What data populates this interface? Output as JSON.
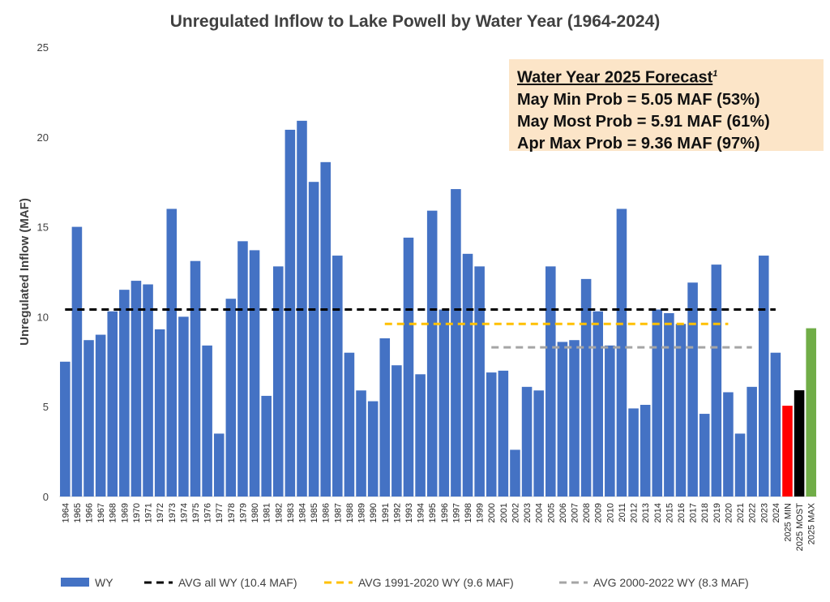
{
  "chart_data": {
    "type": "bar",
    "title": "Unregulated Inflow to Lake Powell by Water Year (1964-2024)",
    "ylabel": "Unregulated Inflow (MAF)",
    "ylim": [
      0,
      25
    ],
    "yticks": [
      0,
      5,
      10,
      15,
      20,
      25
    ],
    "grid": false,
    "legend_position": "bottom",
    "categories": [
      "1964",
      "1965",
      "1966",
      "1967",
      "1968",
      "1969",
      "1970",
      "1971",
      "1972",
      "1973",
      "1974",
      "1975",
      "1976",
      "1977",
      "1978",
      "1979",
      "1980",
      "1981",
      "1982",
      "1983",
      "1984",
      "1985",
      "1986",
      "1987",
      "1988",
      "1989",
      "1990",
      "1991",
      "1992",
      "1993",
      "1994",
      "1995",
      "1996",
      "1997",
      "1998",
      "1999",
      "2000",
      "2001",
      "2002",
      "2003",
      "2004",
      "2005",
      "2006",
      "2007",
      "2008",
      "2009",
      "2010",
      "2011",
      "2012",
      "2013",
      "2014",
      "2015",
      "2016",
      "2017",
      "2018",
      "2019",
      "2020",
      "2021",
      "2022",
      "2023",
      "2024",
      "2025 MIN",
      "2025 MOST",
      "2025 MAX"
    ],
    "series": [
      {
        "name": "WY",
        "color": "#4472c4",
        "values": [
          7.5,
          15.0,
          8.7,
          9.0,
          10.3,
          11.5,
          12.0,
          11.8,
          9.3,
          16.0,
          10.0,
          13.1,
          8.4,
          3.5,
          11.0,
          14.2,
          13.7,
          5.6,
          12.8,
          20.4,
          20.9,
          17.5,
          18.6,
          13.4,
          8.0,
          5.9,
          5.3,
          8.8,
          7.3,
          14.4,
          6.8,
          15.9,
          10.4,
          17.1,
          13.5,
          12.8,
          6.9,
          7.0,
          2.6,
          6.1,
          5.9,
          12.8,
          8.6,
          8.7,
          12.1,
          10.3,
          8.4,
          16.0,
          4.9,
          5.1,
          10.4,
          10.2,
          9.6,
          11.9,
          4.6,
          12.9,
          5.8,
          3.5,
          6.1,
          13.4,
          8.0,
          null,
          null,
          null
        ]
      }
    ],
    "forecast_bars": [
      {
        "category": "2025 MIN",
        "value": 5.05,
        "color": "#ff0000"
      },
      {
        "category": "2025 MOST",
        "value": 5.91,
        "color": "#000000"
      },
      {
        "category": "2025 MAX",
        "value": 9.36,
        "color": "#70ad47"
      }
    ],
    "reference_lines": [
      {
        "name": "AVG all WY (10.4 MAF)",
        "value": 10.4,
        "from": "1964",
        "to": "2024",
        "color": "#000000"
      },
      {
        "name": "AVG 1991-2020 WY (9.6 MAF)",
        "value": 9.6,
        "from": "1991",
        "to": "2020",
        "color": "#ffc000"
      },
      {
        "name": "AVG 2000-2022 WY (8.3 MAF)",
        "value": 8.3,
        "from": "2000",
        "to": "2022",
        "color": "#a5a5a5"
      }
    ],
    "legend": [
      {
        "label": "WY",
        "kind": "bar",
        "color": "#4472c4"
      },
      {
        "label": "AVG all WY (10.4 MAF)",
        "kind": "dash",
        "color": "#000000"
      },
      {
        "label": "AVG 1991-2020 WY (9.6 MAF)",
        "kind": "dash",
        "color": "#ffc000"
      },
      {
        "label": "AVG 2000-2022 WY (8.3 MAF)",
        "kind": "dash",
        "color": "#a5a5a5"
      }
    ]
  },
  "annotation": {
    "heading": "Water Year 2025 Forecast",
    "footnote_mark": "1",
    "lines": [
      "May Min Prob = 5.05 MAF (53%)",
      "May Most Prob = 5.91 MAF (61%)",
      "Apr Max Prob = 9.36 MAF (97%)"
    ]
  }
}
